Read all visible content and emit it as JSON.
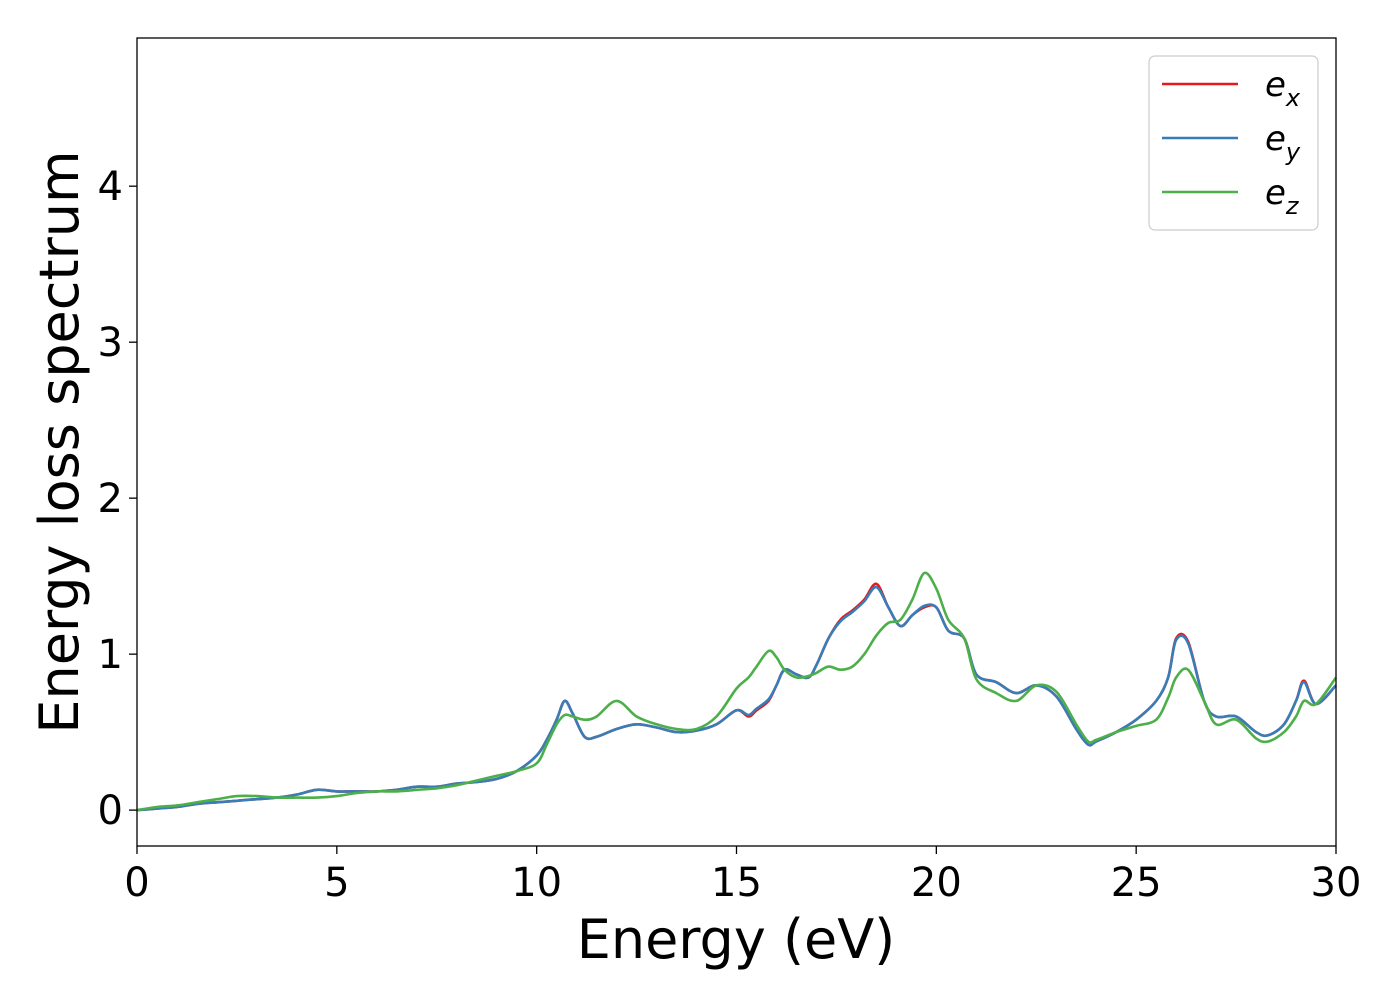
{
  "chart_data": {
    "type": "line",
    "title": "",
    "xlabel": "Energy (eV)",
    "ylabel": "Energy loss spectrum",
    "xlim": [
      0,
      30
    ],
    "ylim": [
      -0.23,
      4.95
    ],
    "xticks": [
      0,
      5,
      10,
      15,
      20,
      25,
      30
    ],
    "yticks": [
      0,
      1,
      2,
      3,
      4
    ],
    "grid": false,
    "legend_position": "top-right",
    "x": [
      0,
      0.5,
      1,
      1.5,
      2,
      2.5,
      3,
      3.5,
      4,
      4.5,
      5,
      5.5,
      6,
      6.5,
      7,
      7.5,
      8,
      8.5,
      9,
      9.5,
      10,
      10.25,
      10.5,
      10.7,
      10.9,
      11.2,
      11.5,
      12,
      12.5,
      13,
      13.5,
      14,
      14.5,
      15,
      15.3,
      15.5,
      15.8,
      16,
      16.2,
      16.5,
      16.8,
      17,
      17.3,
      17.6,
      17.9,
      18.2,
      18.5,
      18.8,
      19.1,
      19.4,
      19.7,
      20,
      20.3,
      20.7,
      21,
      21.5,
      22,
      22.5,
      23,
      23.5,
      23.8,
      24,
      24.5,
      25,
      25.5,
      25.8,
      26,
      26.3,
      26.7,
      27,
      27.5,
      28,
      28.3,
      28.7,
      29,
      29.2,
      29.5,
      30
    ],
    "series": [
      {
        "name": "e",
        "subscript": "x",
        "color": "#e41a1c",
        "values": [
          0,
          0.01,
          0.02,
          0.04,
          0.05,
          0.06,
          0.07,
          0.08,
          0.1,
          0.13,
          0.12,
          0.12,
          0.12,
          0.13,
          0.15,
          0.15,
          0.17,
          0.18,
          0.2,
          0.25,
          0.35,
          0.45,
          0.58,
          0.7,
          0.62,
          0.47,
          0.47,
          0.52,
          0.55,
          0.53,
          0.5,
          0.51,
          0.55,
          0.64,
          0.6,
          0.64,
          0.7,
          0.8,
          0.9,
          0.87,
          0.85,
          0.93,
          1.1,
          1.22,
          1.28,
          1.35,
          1.45,
          1.3,
          1.18,
          1.25,
          1.3,
          1.3,
          1.15,
          1.1,
          0.87,
          0.82,
          0.75,
          0.8,
          0.73,
          0.52,
          0.42,
          0.44,
          0.5,
          0.58,
          0.7,
          0.85,
          1.1,
          1.08,
          0.7,
          0.6,
          0.6,
          0.5,
          0.48,
          0.55,
          0.7,
          0.83,
          0.68,
          0.8
        ]
      },
      {
        "name": "e",
        "subscript": "y",
        "color": "#377eb8",
        "values": [
          0,
          0.01,
          0.02,
          0.04,
          0.05,
          0.06,
          0.07,
          0.08,
          0.1,
          0.13,
          0.12,
          0.12,
          0.12,
          0.13,
          0.15,
          0.15,
          0.17,
          0.18,
          0.2,
          0.25,
          0.35,
          0.45,
          0.58,
          0.7,
          0.62,
          0.47,
          0.47,
          0.52,
          0.55,
          0.53,
          0.5,
          0.51,
          0.55,
          0.64,
          0.61,
          0.65,
          0.71,
          0.8,
          0.9,
          0.87,
          0.85,
          0.93,
          1.1,
          1.21,
          1.27,
          1.34,
          1.43,
          1.3,
          1.18,
          1.25,
          1.31,
          1.3,
          1.15,
          1.1,
          0.87,
          0.82,
          0.75,
          0.8,
          0.73,
          0.52,
          0.42,
          0.44,
          0.5,
          0.58,
          0.7,
          0.85,
          1.09,
          1.07,
          0.7,
          0.6,
          0.6,
          0.5,
          0.48,
          0.55,
          0.7,
          0.82,
          0.68,
          0.8
        ]
      },
      {
        "name": "e",
        "subscript": "z",
        "color": "#4daf4a",
        "values": [
          0,
          0.02,
          0.03,
          0.05,
          0.07,
          0.09,
          0.09,
          0.08,
          0.08,
          0.08,
          0.09,
          0.11,
          0.12,
          0.12,
          0.13,
          0.14,
          0.16,
          0.19,
          0.22,
          0.25,
          0.3,
          0.42,
          0.55,
          0.61,
          0.6,
          0.58,
          0.6,
          0.7,
          0.6,
          0.55,
          0.52,
          0.52,
          0.6,
          0.78,
          0.85,
          0.92,
          1.02,
          0.98,
          0.9,
          0.85,
          0.86,
          0.88,
          0.92,
          0.9,
          0.92,
          1.0,
          1.12,
          1.2,
          1.22,
          1.35,
          1.52,
          1.42,
          1.22,
          1.1,
          0.84,
          0.75,
          0.7,
          0.8,
          0.76,
          0.55,
          0.44,
          0.45,
          0.5,
          0.54,
          0.58,
          0.72,
          0.85,
          0.9,
          0.7,
          0.55,
          0.58,
          0.46,
          0.44,
          0.5,
          0.6,
          0.7,
          0.68,
          0.85
        ]
      }
    ]
  }
}
